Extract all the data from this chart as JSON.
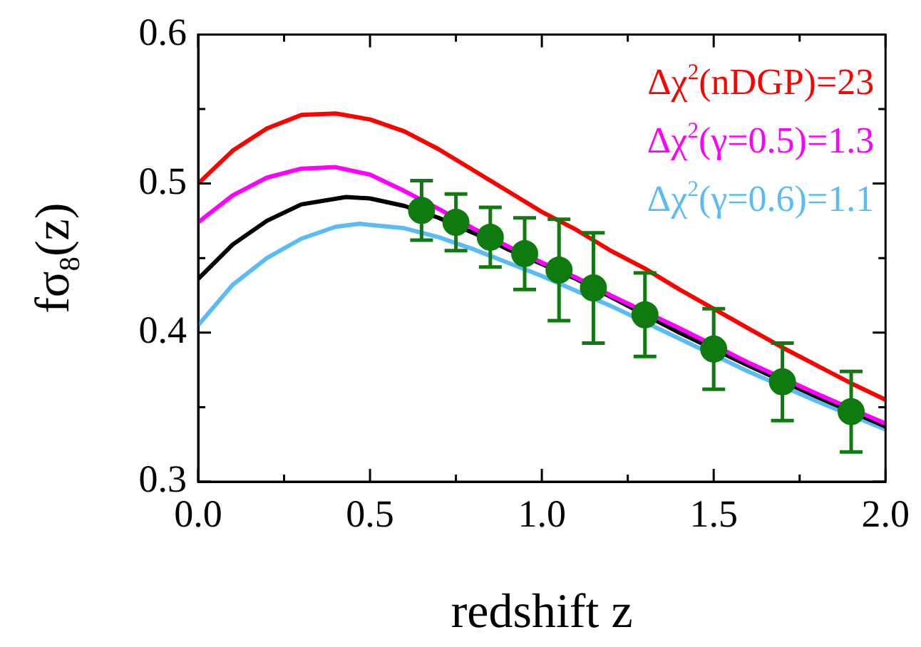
{
  "chart_data": {
    "type": "line",
    "xlabel": "redshift z",
    "ylabel": "fσ$_{8}$(z)",
    "xlim": [
      0,
      2
    ],
    "ylim": [
      0.3,
      0.6
    ],
    "xticks": [
      {
        "value": 0,
        "label": "0.0"
      },
      {
        "value": 0.25,
        "label": null
      },
      {
        "value": 0.5,
        "label": "0.5"
      },
      {
        "value": 0.75,
        "label": null
      },
      {
        "value": 1,
        "label": "1.0"
      },
      {
        "value": 1.25,
        "label": null
      },
      {
        "value": 1.5,
        "label": "1.5"
      },
      {
        "value": 1.75,
        "label": null
      },
      {
        "value": 2,
        "label": "2.0"
      }
    ],
    "yticks": [
      0.3,
      {
        "value": 0.35,
        "label": null
      },
      0.4,
      {
        "value": 0.45,
        "label": null
      },
      0.5,
      {
        "value": 0.55,
        "label": null
      },
      0.6
    ],
    "grid": false,
    "legend": "top right",
    "marker": "none",
    "line_style": "solid",
    "series": [
      {
        "name": "Δχ$^{2}$(nDGP)=23",
        "color": "#ff0000",
        "x": [
          0,
          0.1,
          0.2,
          0.3,
          0.4,
          0.5,
          0.6,
          0.7,
          0.8,
          0.9,
          1.0,
          1.1,
          1.2,
          1.3,
          1.4,
          1.5,
          1.6,
          1.7,
          1.8,
          1.9,
          2.0
        ],
        "values": [
          0.5,
          0.522,
          0.537,
          0.546,
          0.547,
          0.543,
          0.535,
          0.523,
          0.509,
          0.495,
          0.481,
          0.469,
          0.455,
          0.443,
          0.429,
          0.416,
          0.403,
          0.39,
          0.378,
          0.366,
          0.355
        ]
      },
      {
        "name": "Δχ$^{2}$(γ=0.5)=1.3",
        "color": "#ff00ff",
        "x": [
          0,
          0.1,
          0.2,
          0.3,
          0.4,
          0.5,
          0.6,
          0.7,
          0.8,
          0.9,
          1.0,
          1.1,
          1.2,
          1.4,
          1.6,
          1.8,
          2.0
        ],
        "values": [
          0.474,
          0.492,
          0.504,
          0.51,
          0.511,
          0.506,
          0.495,
          0.483,
          0.47,
          0.458,
          0.447,
          0.437,
          0.425,
          0.403,
          0.38,
          0.359,
          0.339
        ]
      },
      {
        "color": "#000000",
        "x": [
          0,
          0.1,
          0.2,
          0.3,
          0.43,
          0.5,
          0.6,
          0.7,
          0.8,
          0.9,
          1.0,
          1.1,
          1.2,
          1.4,
          1.6,
          1.8,
          2.0
        ],
        "values": [
          0.436,
          0.459,
          0.475,
          0.486,
          0.491,
          0.49,
          0.485,
          0.477,
          0.467,
          0.456,
          0.446,
          0.436,
          0.424,
          0.4,
          0.378,
          0.357,
          0.337
        ]
      },
      {
        "name": "Δχ$^{2}$(γ=0.6)=1.1",
        "color": "#5bbcf5",
        "x": [
          0,
          0.1,
          0.2,
          0.3,
          0.4,
          0.47,
          0.6,
          0.7,
          0.8,
          0.9,
          1.0,
          1.1,
          1.2,
          1.4,
          1.6,
          1.8,
          2.0
        ],
        "values": [
          0.405,
          0.432,
          0.45,
          0.463,
          0.471,
          0.473,
          0.47,
          0.464,
          0.456,
          0.447,
          0.438,
          0.428,
          0.418,
          0.396,
          0.374,
          0.354,
          0.335
        ]
      },
      {
        "type": "scatter",
        "marker": "circle",
        "color": "#0f7a0f",
        "x": [
          0.65,
          0.75,
          0.85,
          0.95,
          1.05,
          1.15,
          1.3,
          1.5,
          1.7,
          1.9
        ],
        "values": [
          0.482,
          0.474,
          0.464,
          0.453,
          0.442,
          0.43,
          0.412,
          0.389,
          0.367,
          0.347
        ],
        "errors": [
          0.02,
          0.019,
          0.02,
          0.024,
          0.034,
          0.037,
          0.028,
          0.027,
          0.026,
          0.027
        ]
      }
    ]
  }
}
